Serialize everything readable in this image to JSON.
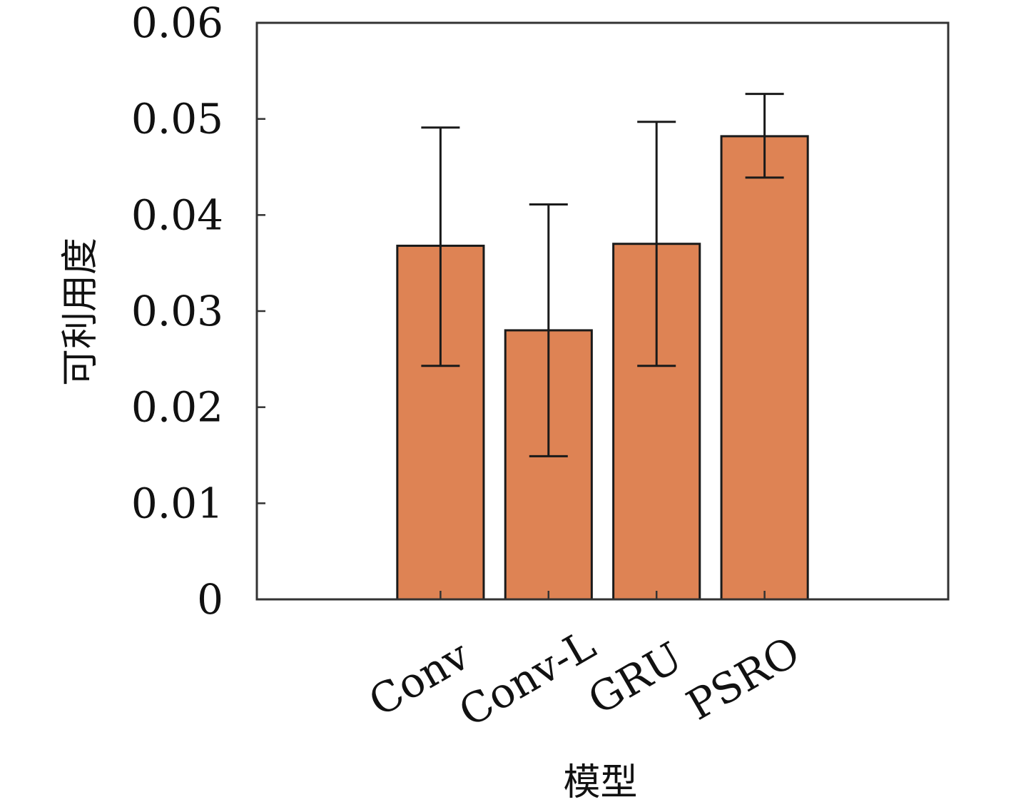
{
  "chart_data": {
    "type": "bar",
    "title": "",
    "xlabel": "模型",
    "ylabel": "可利用度",
    "categories": [
      "Conv",
      "Conv-L",
      "GRU",
      "PSRO"
    ],
    "values": [
      0.0368,
      0.028,
      0.037,
      0.0482
    ],
    "error_low": [
      0.0243,
      0.0149,
      0.0243,
      0.0439
    ],
    "error_high": [
      0.0491,
      0.0411,
      0.0497,
      0.0526
    ],
    "ylim": [
      0,
      0.06
    ],
    "yticks": [
      "0",
      "0.01",
      "0.02",
      "0.03",
      "0.04",
      "0.05",
      "0.06"
    ],
    "ytick_values": [
      0,
      0.01,
      0.02,
      0.03,
      0.04,
      0.05,
      0.06
    ],
    "grid": false,
    "legend": "none",
    "colors": {
      "bar": "#DE8354",
      "edge": "#1a1a1a",
      "axis": "#333333"
    }
  }
}
